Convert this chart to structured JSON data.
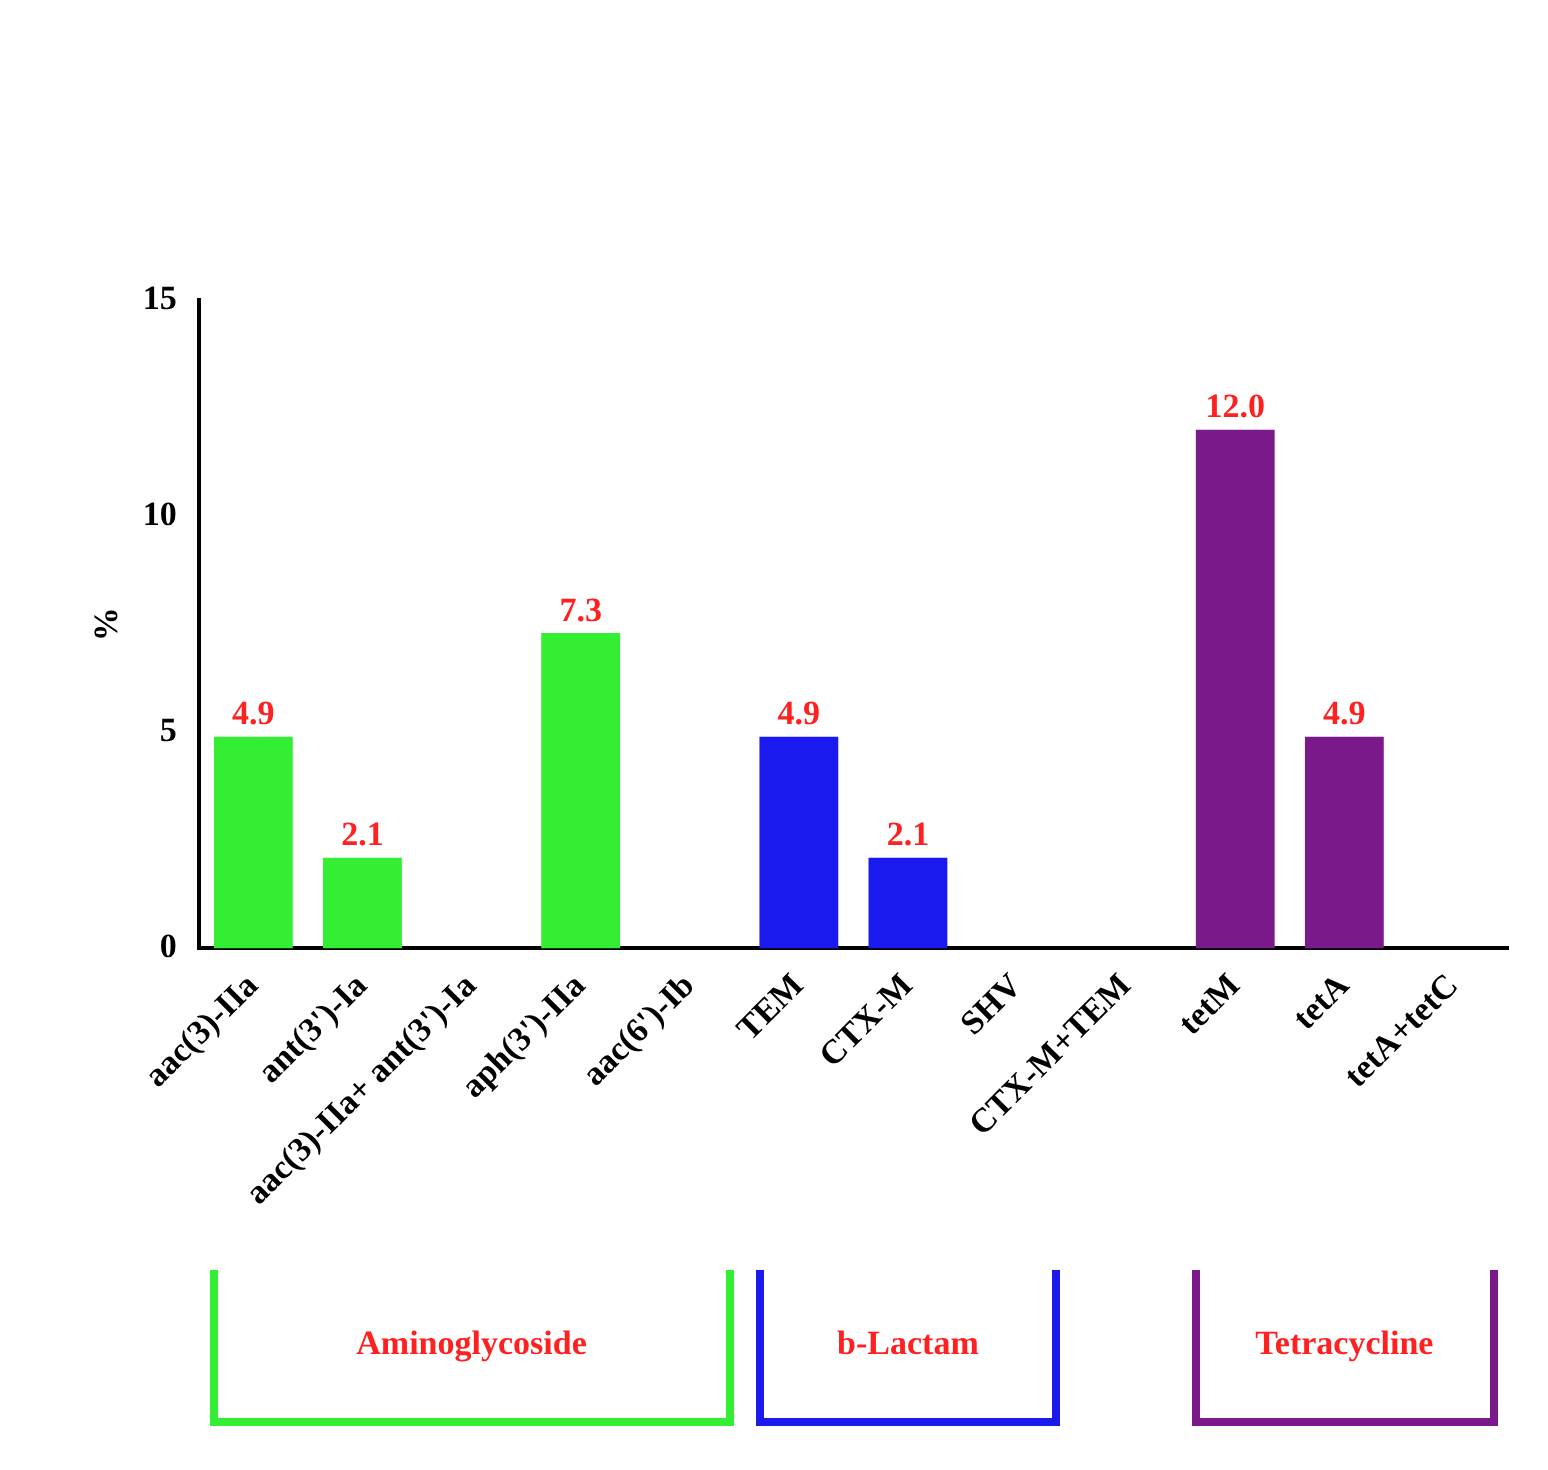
{
  "chart_data": {
    "type": "bar",
    "ylabel": "%",
    "categories": [
      "aac(3)-IIa",
      "ant(3')-Ia",
      "aac(3)-IIa+ ant(3')-Ia",
      "aph(3')-IIa",
      "aac(6')-Ib",
      "TEM",
      "CTX-M",
      "SHV",
      "CTX-M+TEM",
      "tetM",
      "tetA",
      "tetA+tetC"
    ],
    "values": [
      4.9,
      2.1,
      0,
      7.3,
      0,
      4.9,
      2.1,
      0,
      0,
      12.0,
      4.9,
      0
    ],
    "value_labels": [
      "4.9",
      "2.1",
      null,
      "7.3",
      null,
      "4.9",
      "2.1",
      null,
      null,
      "12.0",
      "4.9",
      null
    ],
    "colors": [
      "#33ee33",
      "#33ee33",
      "#33ee33",
      "#33ee33",
      "#33ee33",
      "#1a1aee",
      "#1a1aee",
      "#1a1aee",
      "#1a1aee",
      "#7a1a8a",
      "#7a1a8a",
      "#7a1a8a"
    ],
    "ylim": [
      0,
      15
    ],
    "yticks": [
      0,
      5,
      10,
      15
    ],
    "grid": false,
    "legend": false,
    "annotations": [
      "Aminoglycoside",
      "b-Lactam",
      "Tetracycline"
    ]
  }
}
